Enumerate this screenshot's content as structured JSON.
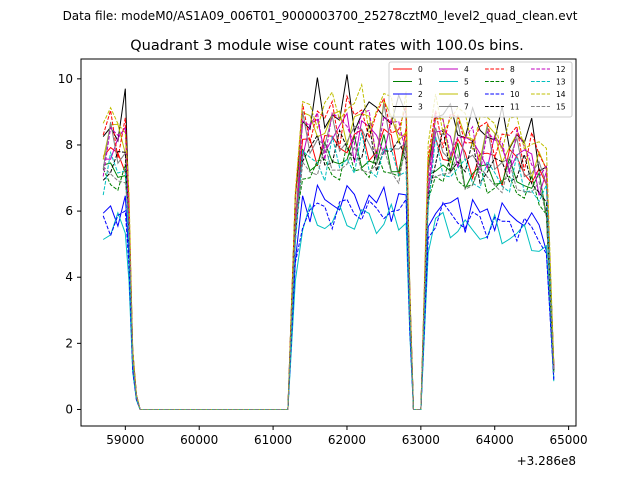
{
  "chart_data": {
    "type": "line",
    "suptitle": "Data file: modeM0/AS1A09_006T01_9000003700_25278cztM0_level2_quad_clean.evt",
    "title": "Quadrant 3 module wise count rates with 100.0s bins.",
    "xlabel": "",
    "ylabel": "",
    "x_offset_label": "+3.286e8",
    "xlim": [
      58400,
      65100
    ],
    "ylim": [
      -0.5,
      10.6
    ],
    "x_ticks": [
      59000,
      60000,
      61000,
      62000,
      63000,
      64000,
      65000
    ],
    "x_tick_labels": [
      "59000",
      "60000",
      "61000",
      "62000",
      "63000",
      "64000",
      "65000"
    ],
    "y_ticks": [
      0,
      2,
      4,
      6,
      8,
      10
    ],
    "y_tick_labels": [
      "0",
      "2",
      "4",
      "6",
      "8",
      "10"
    ],
    "grid": false,
    "legend_position": "top-right",
    "series": [
      {
        "name": "0",
        "color": "#ff0000",
        "dash": "solid",
        "level": 8.0
      },
      {
        "name": "1",
        "color": "#008000",
        "dash": "solid",
        "level": 7.6
      },
      {
        "name": "2",
        "color": "#0000ff",
        "dash": "solid",
        "level": 6.3
      },
      {
        "name": "3",
        "color": "#000000",
        "dash": "solid",
        "level": 9.0
      },
      {
        "name": "4",
        "color": "#bf00bf",
        "dash": "solid",
        "level": 8.3
      },
      {
        "name": "5",
        "color": "#00bfbf",
        "dash": "solid",
        "level": 5.7
      },
      {
        "name": "6",
        "color": "#bfbf00",
        "dash": "solid",
        "level": 8.6
      },
      {
        "name": "7",
        "color": "#808080",
        "dash": "solid",
        "level": 8.2
      },
      {
        "name": "8",
        "color": "#ff0000",
        "dash": "dashed",
        "level": 8.8
      },
      {
        "name": "9",
        "color": "#008000",
        "dash": "dashed",
        "level": 7.3
      },
      {
        "name": "10",
        "color": "#0000ff",
        "dash": "dashed",
        "level": 6.0
      },
      {
        "name": "11",
        "color": "#000000",
        "dash": "dashed",
        "level": 7.8
      },
      {
        "name": "12",
        "color": "#bf00bf",
        "dash": "dashed",
        "level": 8.5
      },
      {
        "name": "13",
        "color": "#00bfbf",
        "dash": "dashed",
        "level": 7.5
      },
      {
        "name": "14",
        "color": "#bfbf00",
        "dash": "dashed",
        "level": 9.1
      },
      {
        "name": "15",
        "color": "#808080",
        "dash": "dashed",
        "level": 7.4
      }
    ],
    "time_profile": {
      "x": [
        58700,
        58800,
        58900,
        59000,
        59050,
        59100,
        59150,
        59200,
        60000,
        61000,
        61200,
        61300,
        61400,
        61500,
        61600,
        61700,
        61800,
        61900,
        62000,
        62100,
        62200,
        62300,
        62400,
        62500,
        62600,
        62700,
        62800,
        62850,
        62900,
        63000,
        63100,
        63200,
        63300,
        63400,
        63500,
        63600,
        63700,
        63800,
        63900,
        64000,
        64100,
        64200,
        64300,
        64400,
        64500,
        64600,
        64700,
        64800
      ],
      "scale": [
        0.92,
        0.97,
        0.95,
        0.98,
        0.7,
        0.2,
        0.05,
        0.0,
        0.0,
        0.0,
        0.0,
        0.7,
        1.0,
        0.99,
        1.02,
        0.98,
        1.01,
        1.0,
        1.03,
        0.99,
        1.02,
        1.01,
        0.97,
        1.03,
        1.0,
        0.98,
        1.01,
        0.4,
        0.0,
        0.0,
        0.85,
        1.0,
        0.99,
        0.96,
        0.98,
        0.94,
        0.96,
        0.93,
        0.95,
        0.94,
        0.93,
        0.92,
        0.94,
        0.91,
        0.9,
        0.86,
        0.83,
        0.15
      ]
    }
  }
}
